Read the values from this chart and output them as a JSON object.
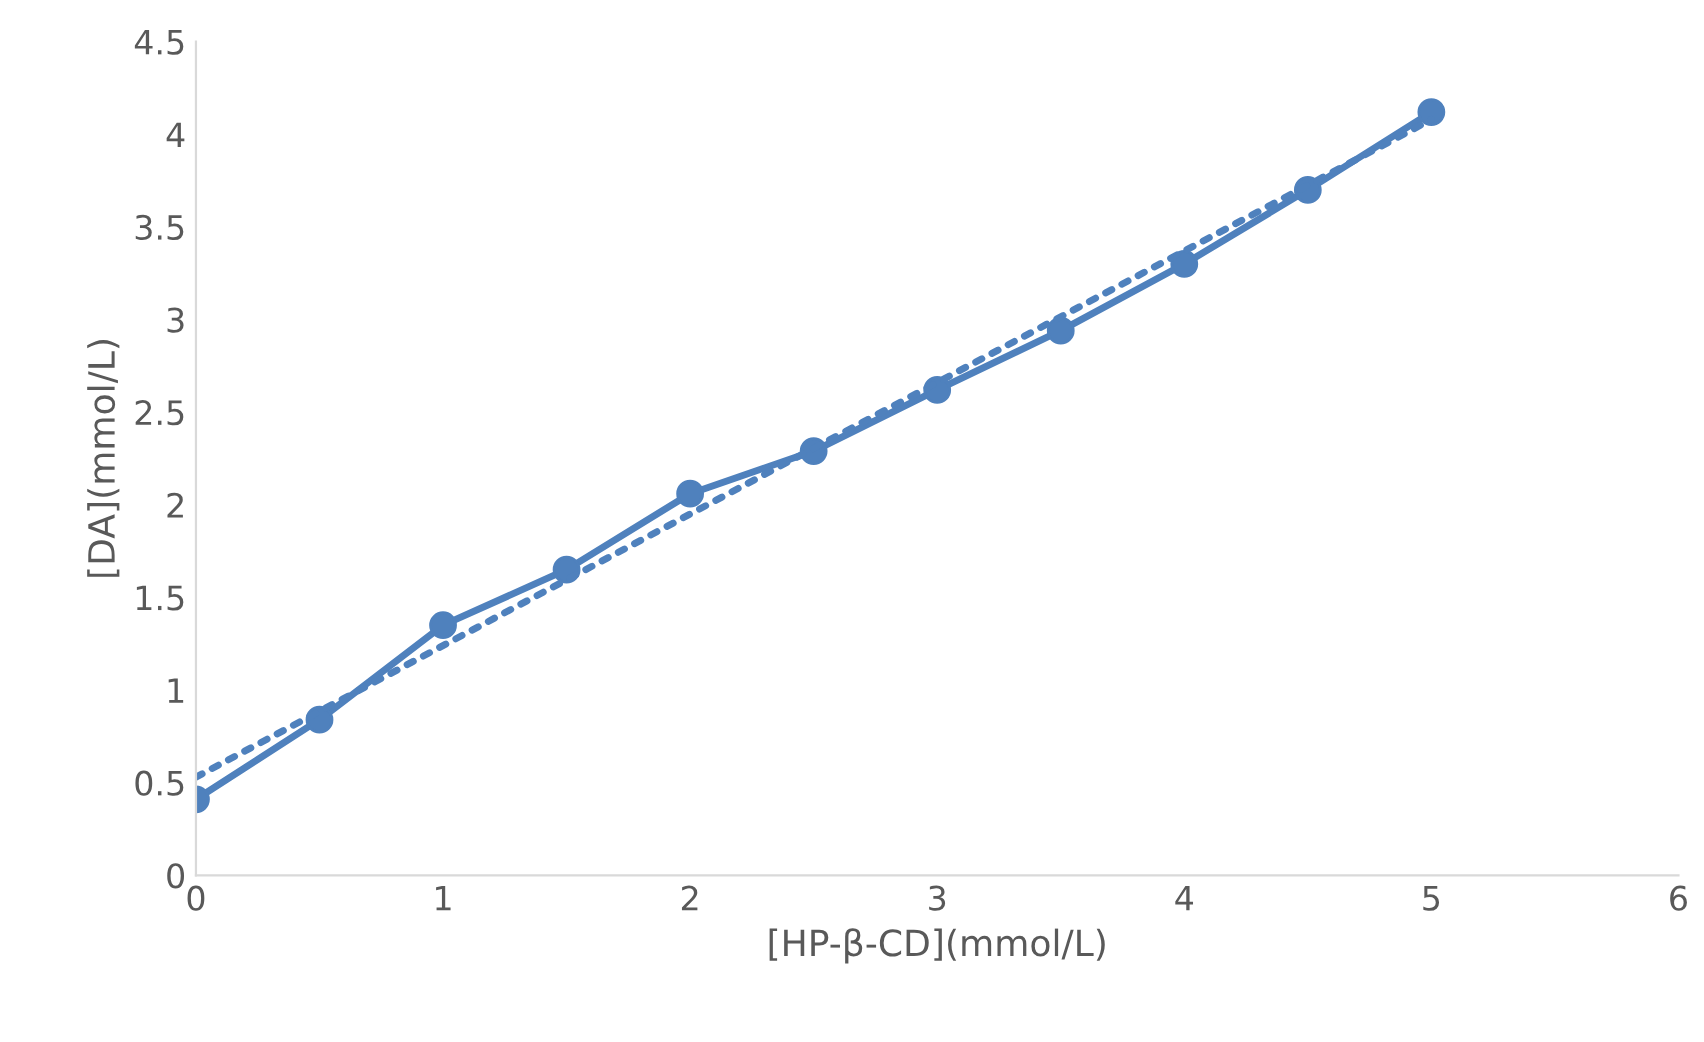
{
  "chart_data": {
    "type": "line",
    "xlabel": "[HP-β-CD](mmol/L)",
    "ylabel": "[DA](mmol/L)",
    "x": [
      0,
      0.5,
      1,
      1.5,
      2,
      2.5,
      3,
      3.5,
      4,
      4.5,
      5
    ],
    "series": [
      {
        "color": "#4f81bd",
        "marker": "circle",
        "line_style": "solid",
        "values": [
          0.41,
          0.84,
          1.35,
          1.65,
          2.06,
          2.29,
          2.62,
          2.94,
          3.3,
          3.7,
          4.12
        ]
      },
      {
        "color": "#4f81bd",
        "marker": "none",
        "line_style": "dotted",
        "x": [
          0,
          5
        ],
        "values": [
          0.53,
          4.08
        ]
      }
    ],
    "xlim": [
      0,
      6
    ],
    "xticks": [
      0,
      1,
      2,
      3,
      4,
      5,
      6
    ],
    "ylim": [
      0,
      4.5
    ],
    "yticks": [
      0,
      0.5,
      1,
      1.5,
      2,
      2.5,
      3,
      3.5,
      4,
      4.5
    ],
    "grid": false,
    "legend": false
  }
}
